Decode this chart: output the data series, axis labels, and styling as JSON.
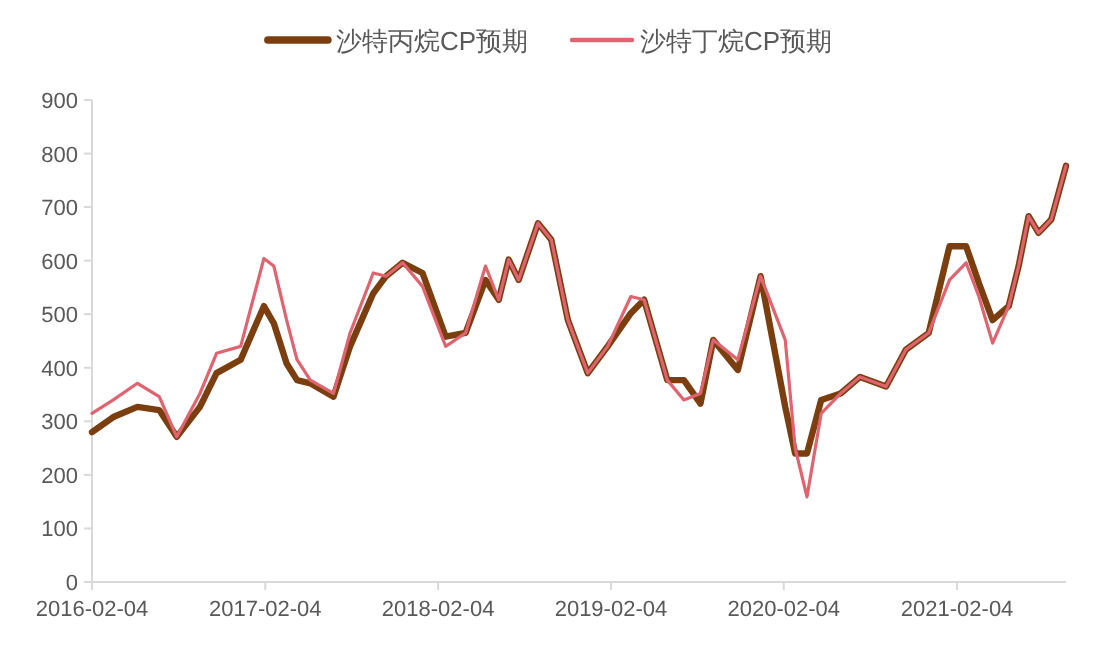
{
  "chart_data": {
    "type": "line",
    "legend": "top",
    "grid": false,
    "x": [
      "2016-02-04",
      "2016-03-20",
      "2016-05-10",
      "2016-06-25",
      "2016-08-01",
      "2016-09-19",
      "2016-10-24",
      "2016-12-14",
      "2017-02-01",
      "2017-02-22",
      "2017-03-21",
      "2017-04-12",
      "2017-05-10",
      "2017-06-28",
      "2017-08-02",
      "2017-09-20",
      "2017-10-17",
      "2017-11-21",
      "2018-01-02",
      "2018-02-20",
      "2018-04-03",
      "2018-05-15",
      "2018-06-12",
      "2018-07-03",
      "2018-07-24",
      "2018-09-03",
      "2018-10-01",
      "2018-11-05",
      "2018-12-17",
      "2019-01-28",
      "2019-03-18",
      "2019-04-15",
      "2019-06-03",
      "2019-07-08",
      "2019-08-12",
      "2019-09-08",
      "2019-10-30",
      "2019-12-17",
      "2020-02-07",
      "2020-02-28",
      "2020-03-24",
      "2020-04-23",
      "2020-06-03",
      "2020-07-14",
      "2020-09-07",
      "2020-10-19",
      "2020-12-06",
      "2021-01-19",
      "2021-02-23",
      "2021-03-22",
      "2021-04-20",
      "2021-05-24",
      "2021-06-14",
      "2021-07-05",
      "2021-07-26",
      "2021-08-22",
      "2021-09-22"
    ],
    "xlim": [
      "2016-02-04",
      "2021-09-22"
    ],
    "xticks": [
      "2016-02-04",
      "2017-02-04",
      "2018-02-04",
      "2019-02-04",
      "2020-02-04",
      "2021-02-04"
    ],
    "ylim": [
      0,
      900
    ],
    "yticks": [
      0,
      100,
      200,
      300,
      400,
      500,
      600,
      700,
      800,
      900
    ],
    "series": [
      {
        "name": "沙特丙烷CP预期",
        "color": "#7b3f0f",
        "values": [
          280,
          308,
          327,
          321,
          271,
          327,
          390,
          415,
          515,
          483,
          408,
          377,
          371,
          346,
          440,
          539,
          571,
          596,
          577,
          458,
          465,
          564,
          527,
          602,
          564,
          670,
          639,
          489,
          390,
          440,
          502,
          527,
          377,
          377,
          333,
          452,
          396,
          571,
          327,
          240,
          240,
          340,
          352,
          383,
          365,
          434,
          465,
          627,
          627,
          558,
          489,
          515,
          590,
          683,
          652,
          677,
          777
        ]
      },
      {
        "name": "沙特丁烷CP预期",
        "color": "#e06470",
        "values": [
          315,
          340,
          371,
          346,
          271,
          352,
          427,
          440,
          604,
          590,
          489,
          415,
          377,
          352,
          465,
          577,
          571,
          596,
          552,
          440,
          465,
          590,
          527,
          602,
          564,
          670,
          639,
          489,
          390,
          440,
          533,
          527,
          377,
          340,
          352,
          452,
          415,
          571,
          452,
          250,
          159,
          315,
          352,
          383,
          365,
          434,
          465,
          564,
          596,
          533,
          446,
          515,
          590,
          683,
          652,
          677,
          777
        ]
      }
    ]
  }
}
